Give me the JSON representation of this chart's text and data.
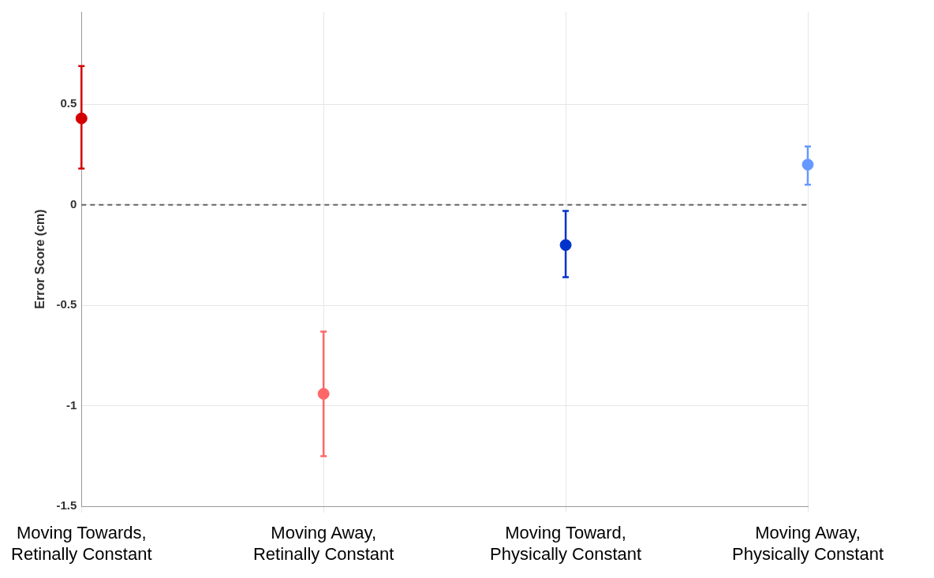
{
  "chart_data": {
    "type": "scatter",
    "ylabel": "Error Score (cm)",
    "categories": [
      "Moving Towards, Retinally Constant",
      "Moving Away, Retinally Constant",
      "Moving Toward, Physically Constant",
      "Moving Away, Physically Constant"
    ],
    "values": [
      0.43,
      -0.94,
      -0.2,
      0.2
    ],
    "colors": [
      "#d40000",
      "#ff6666",
      "#0033cc",
      "#6699ff"
    ],
    "errors": [
      [
        0.18,
        0.69
      ],
      [
        -1.25,
        -0.63
      ],
      [
        -0.36,
        -0.03
      ],
      [
        0.1,
        0.29
      ]
    ],
    "ylim": [
      -1.5,
      0.96
    ],
    "yticks": [
      -1.5,
      -1,
      -0.5,
      0,
      0.5
    ],
    "ref_lines": [
      {
        "axis": "y",
        "value": 0,
        "color": "#666666",
        "line_style": "dashed"
      }
    ],
    "grid": true,
    "marker": "circle",
    "legend": false
  }
}
